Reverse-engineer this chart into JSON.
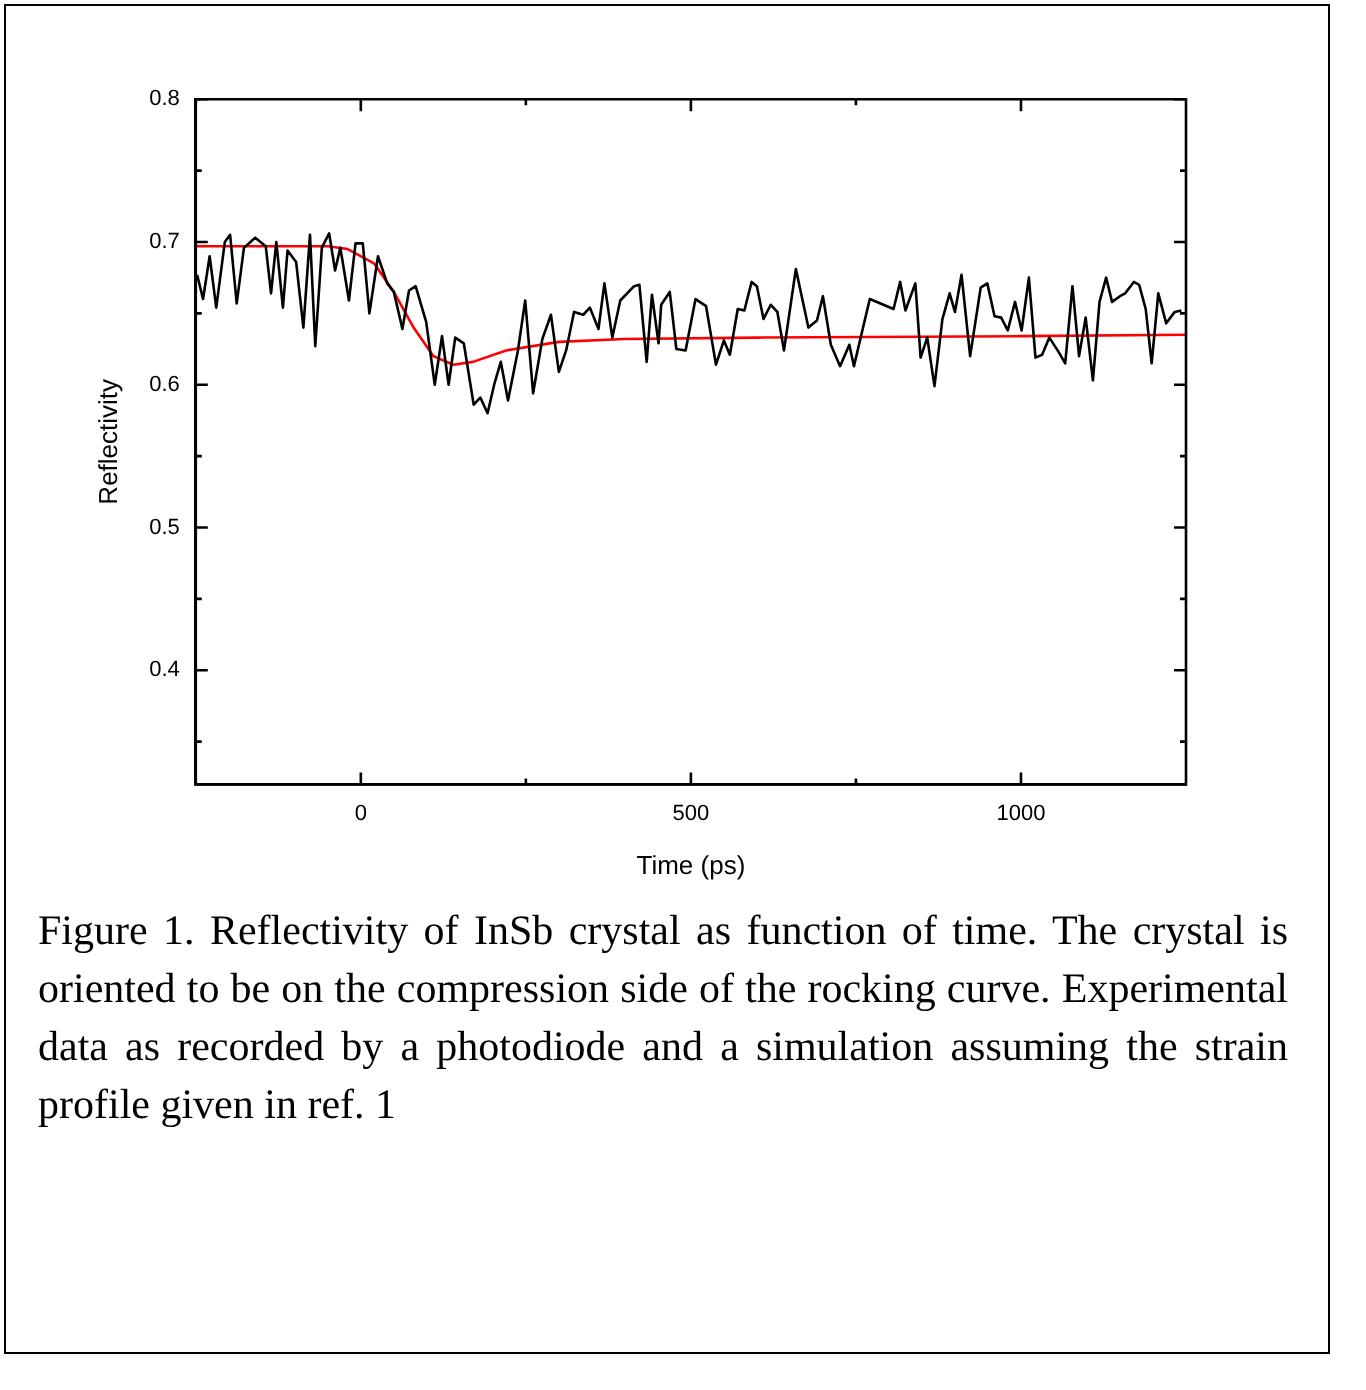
{
  "chart_data": {
    "type": "line",
    "xlabel": "Time (ps)",
    "ylabel": "Reflectivity",
    "annotations": [
      "Figure 1. Reflectivity of InSb crystal as function of time.  The crystal is oriented to be on the compression side of the rocking curve. Experimental data as recorded by a photodiode and a simulation assuming  the strain profile given in ref. 1"
    ],
    "xlim": [
      -250,
      1250
    ],
    "xticks": [
      {
        "value": -250,
        "label": null
      },
      0,
      {
        "value": 250,
        "label": null
      },
      500,
      {
        "value": 750,
        "label": null
      },
      1000
    ],
    "ylim": [
      0.32,
      0.8
    ],
    "yticks": [
      {
        "value": 0.35,
        "label": null
      },
      0.4,
      {
        "value": 0.45,
        "label": null
      },
      0.5,
      {
        "value": 0.55,
        "label": null
      },
      0.6,
      {
        "value": 0.65,
        "label": null
      },
      0.7,
      {
        "value": 0.75,
        "label": null
      },
      0.8
    ],
    "grid": false,
    "legend": false,
    "marker": "none",
    "line_style": "solid",
    "series": [
      {
        "color": "#000000",
        "x": [
          -248,
          -239,
          -229,
          -219,
          -206,
          -198,
          -188,
          -177,
          -160,
          -144,
          -136,
          -128,
          -118,
          -111,
          -98,
          -87,
          -77,
          -69,
          -59,
          -48,
          -39,
          -31,
          -18,
          -8,
          3,
          13,
          26,
          40,
          50,
          63,
          73,
          83,
          99,
          112,
          123,
          133,
          143,
          156,
          171,
          181,
          192,
          202,
          212,
          223,
          238,
          249,
          261,
          275,
          288,
          300,
          311,
          323,
          337,
          347,
          360,
          369,
          381,
          393,
          414,
          422,
          433,
          441,
          451,
          455,
          468,
          478,
          492,
          507,
          523,
          538,
          550,
          559,
          571,
          581,
          592,
          600,
          610,
          621,
          631,
          641,
          659,
          678,
          691,
          700,
          712,
          726,
          740,
          747,
          771,
          807,
          817,
          825,
          840,
          848,
          858,
          869,
          881,
          892,
          900,
          910,
          923,
          939,
          949,
          960,
          970,
          980,
          991,
          1001,
          1012,
          1022,
          1032,
          1043,
          1057,
          1067,
          1078,
          1088,
          1098,
          1109,
          1119,
          1129,
          1138,
          1150,
          1158,
          1171,
          1179,
          1189,
          1198,
          1208,
          1220,
          1233,
          1243
        ],
        "values": [
          0.677,
          0.66,
          0.69,
          0.654,
          0.7,
          0.705,
          0.657,
          0.696,
          0.703,
          0.697,
          0.664,
          0.7,
          0.654,
          0.694,
          0.686,
          0.64,
          0.705,
          0.627,
          0.696,
          0.706,
          0.68,
          0.696,
          0.659,
          0.699,
          0.699,
          0.65,
          0.69,
          0.671,
          0.665,
          0.639,
          0.666,
          0.669,
          0.644,
          0.6,
          0.634,
          0.6,
          0.633,
          0.629,
          0.586,
          0.591,
          0.58,
          0.6,
          0.616,
          0.589,
          0.624,
          0.659,
          0.594,
          0.632,
          0.649,
          0.609,
          0.624,
          0.651,
          0.649,
          0.654,
          0.639,
          0.671,
          0.633,
          0.659,
          0.669,
          0.67,
          0.616,
          0.663,
          0.629,
          0.656,
          0.665,
          0.625,
          0.624,
          0.66,
          0.655,
          0.614,
          0.631,
          0.621,
          0.653,
          0.652,
          0.672,
          0.669,
          0.646,
          0.656,
          0.651,
          0.624,
          0.681,
          0.64,
          0.645,
          0.662,
          0.628,
          0.613,
          0.628,
          0.613,
          0.66,
          0.653,
          0.672,
          0.652,
          0.671,
          0.619,
          0.633,
          0.599,
          0.646,
          0.664,
          0.651,
          0.677,
          0.62,
          0.668,
          0.671,
          0.648,
          0.647,
          0.638,
          0.658,
          0.638,
          0.675,
          0.619,
          0.621,
          0.633,
          0.623,
          0.615,
          0.669,
          0.62,
          0.647,
          0.603,
          0.658,
          0.675,
          0.658,
          0.662,
          0.664,
          0.672,
          0.67,
          0.653,
          0.615,
          0.664,
          0.643,
          0.651,
          0.652
        ]
      },
      {
        "color": "#ff0000",
        "x": [
          -250,
          -50,
          -20,
          20,
          50,
          80,
          110,
          140,
          170,
          220,
          300,
          400,
          600,
          1000,
          1250
        ],
        "values": [
          0.697,
          0.697,
          0.695,
          0.685,
          0.665,
          0.64,
          0.62,
          0.614,
          0.616,
          0.624,
          0.63,
          0.632,
          0.633,
          0.634,
          0.635
        ]
      }
    ]
  }
}
